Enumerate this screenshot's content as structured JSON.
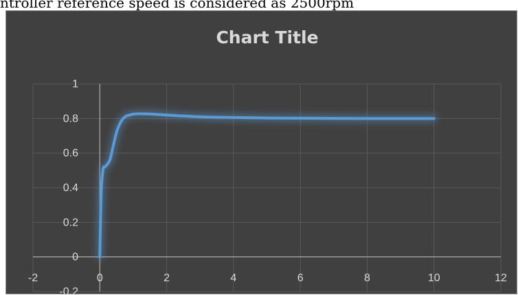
{
  "document": {
    "text_line": "ntroller reference speed is considered as 2500rpm"
  },
  "colors": {
    "background": "#404040",
    "gridline": "#595959",
    "axis": "#bfbfbf",
    "text": "#d9d9d9",
    "series": "#5b9bd5",
    "glow": "#5b9bd5"
  },
  "chart_data": {
    "type": "scatter",
    "title": "Chart Title",
    "xlabel": "",
    "ylabel": "",
    "xlim": [
      -2,
      12
    ],
    "ylim": [
      -0.2,
      1
    ],
    "x_ticks": [
      "-2",
      "0",
      "2",
      "4",
      "6",
      "8",
      "10",
      "12"
    ],
    "y_ticks": [
      "-0.2",
      "0",
      "0.2",
      "0.4",
      "0.6",
      "0.8",
      "1"
    ],
    "grid": true,
    "legend": "none",
    "series": [
      {
        "x": [
          0.0,
          0.02,
          0.05,
          0.1,
          0.15,
          0.2,
          0.3,
          0.4,
          0.5,
          0.6,
          0.7,
          0.8,
          0.9,
          1.0,
          1.2,
          1.5,
          2.0,
          3.0,
          4.0,
          5.0,
          6.0,
          8.0,
          10.0
        ],
        "y": [
          0.0,
          0.2,
          0.4,
          0.51,
          0.52,
          0.53,
          0.56,
          0.64,
          0.72,
          0.77,
          0.8,
          0.815,
          0.82,
          0.825,
          0.827,
          0.826,
          0.82,
          0.81,
          0.806,
          0.803,
          0.802,
          0.8,
          0.8
        ]
      }
    ]
  }
}
